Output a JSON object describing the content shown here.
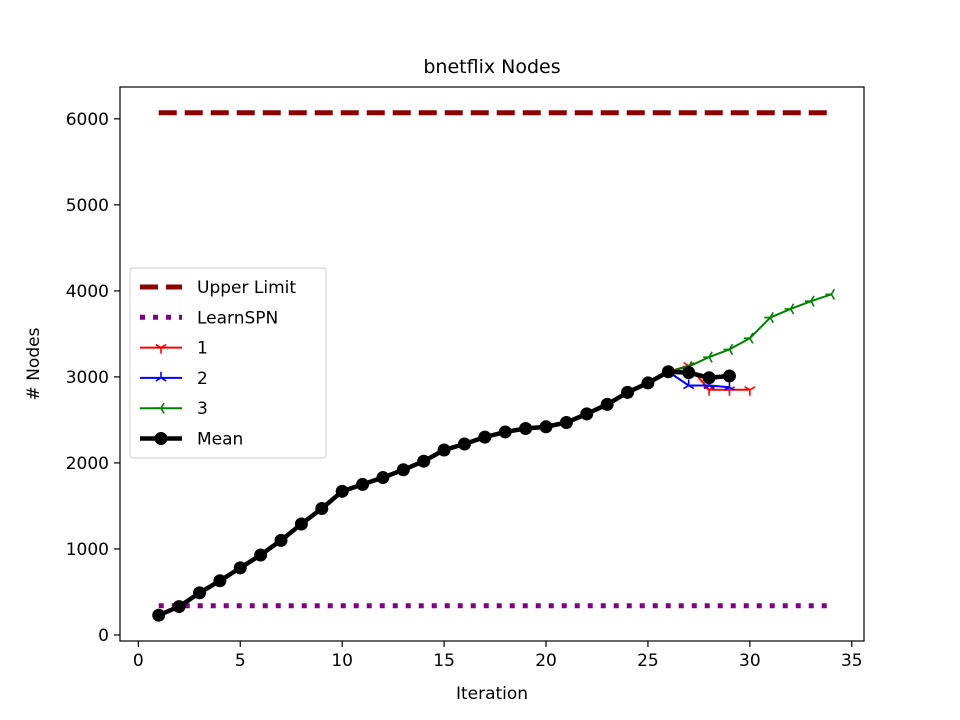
{
  "chart_data": {
    "type": "line",
    "title": "bnetflix Nodes",
    "xlabel": "Iteration",
    "ylabel": "# Nodes",
    "xlim": [
      -0.9,
      35.6
    ],
    "ylim": [
      -70,
      6370
    ],
    "xticks": [
      0,
      5,
      10,
      15,
      20,
      25,
      30,
      35
    ],
    "xtick_labels": [
      "0",
      "5",
      "10",
      "15",
      "20",
      "25",
      "30",
      "35"
    ],
    "yticks": [
      0,
      1000,
      2000,
      3000,
      4000,
      5000,
      6000
    ],
    "ytick_labels": [
      "0",
      "1000",
      "2000",
      "3000",
      "4000",
      "5000",
      "6000"
    ],
    "legend_position": "center-left",
    "series": [
      {
        "name": "Upper Limit",
        "color": "#8b0000",
        "style": "dashed",
        "marker": "none",
        "x": [
          1,
          34
        ],
        "y": [
          6070,
          6070
        ]
      },
      {
        "name": "LearnSPN",
        "color": "#800080",
        "style": "dotted",
        "marker": "none",
        "x": [
          1,
          34
        ],
        "y": [
          340,
          340
        ]
      },
      {
        "name": "1",
        "color": "#ff0000",
        "style": "solid",
        "marker": "tri_down",
        "x": [
          1,
          2,
          3,
          4,
          5,
          6,
          7,
          8,
          9,
          10,
          11,
          12,
          13,
          14,
          15,
          16,
          17,
          18,
          19,
          20,
          21,
          22,
          23,
          24,
          25,
          26,
          27,
          28,
          29,
          30
        ],
        "y": [
          230,
          330,
          490,
          630,
          780,
          930,
          1100,
          1290,
          1470,
          1670,
          1750,
          1830,
          1920,
          2020,
          2150,
          2220,
          2300,
          2360,
          2410,
          2420,
          2470,
          2570,
          2680,
          2820,
          2930,
          3060,
          3130,
          2850,
          2850,
          2850
        ]
      },
      {
        "name": "2",
        "color": "#0000ff",
        "style": "solid",
        "marker": "tri_up",
        "x": [
          1,
          2,
          3,
          4,
          5,
          6,
          7,
          8,
          9,
          10,
          11,
          12,
          13,
          14,
          15,
          16,
          17,
          18,
          19,
          20,
          21,
          22,
          23,
          24,
          25,
          26,
          27,
          28,
          29
        ],
        "y": [
          230,
          330,
          490,
          630,
          780,
          930,
          1100,
          1290,
          1470,
          1670,
          1750,
          1830,
          1920,
          2020,
          2150,
          2220,
          2300,
          2360,
          2400,
          2420,
          2470,
          2570,
          2680,
          2820,
          2930,
          3060,
          2900,
          2900,
          2880
        ]
      },
      {
        "name": "3",
        "color": "#008000",
        "style": "solid",
        "marker": "tri_left",
        "x": [
          1,
          2,
          3,
          4,
          5,
          6,
          7,
          8,
          9,
          10,
          11,
          12,
          13,
          14,
          15,
          16,
          17,
          18,
          19,
          20,
          21,
          22,
          23,
          24,
          25,
          26,
          27,
          28,
          29,
          30,
          31,
          32,
          33,
          34
        ],
        "y": [
          230,
          330,
          490,
          630,
          780,
          930,
          1100,
          1290,
          1470,
          1670,
          1750,
          1830,
          1920,
          2020,
          2150,
          2220,
          2300,
          2360,
          2400,
          2420,
          2470,
          2570,
          2680,
          2820,
          2930,
          3060,
          3120,
          3230,
          3320,
          3450,
          3690,
          3790,
          3880,
          3960
        ]
      },
      {
        "name": "Mean",
        "color": "#000000",
        "style": "solid",
        "marker": "circle",
        "x": [
          1,
          2,
          3,
          4,
          5,
          6,
          7,
          8,
          9,
          10,
          11,
          12,
          13,
          14,
          15,
          16,
          17,
          18,
          19,
          20,
          21,
          22,
          23,
          24,
          25,
          26,
          27,
          28,
          29
        ],
        "y": [
          230,
          330,
          490,
          630,
          780,
          930,
          1100,
          1290,
          1470,
          1670,
          1750,
          1830,
          1920,
          2020,
          2150,
          2220,
          2300,
          2360,
          2400,
          2420,
          2470,
          2570,
          2680,
          2820,
          2930,
          3060,
          3050,
          2990,
          3010
        ]
      }
    ]
  }
}
